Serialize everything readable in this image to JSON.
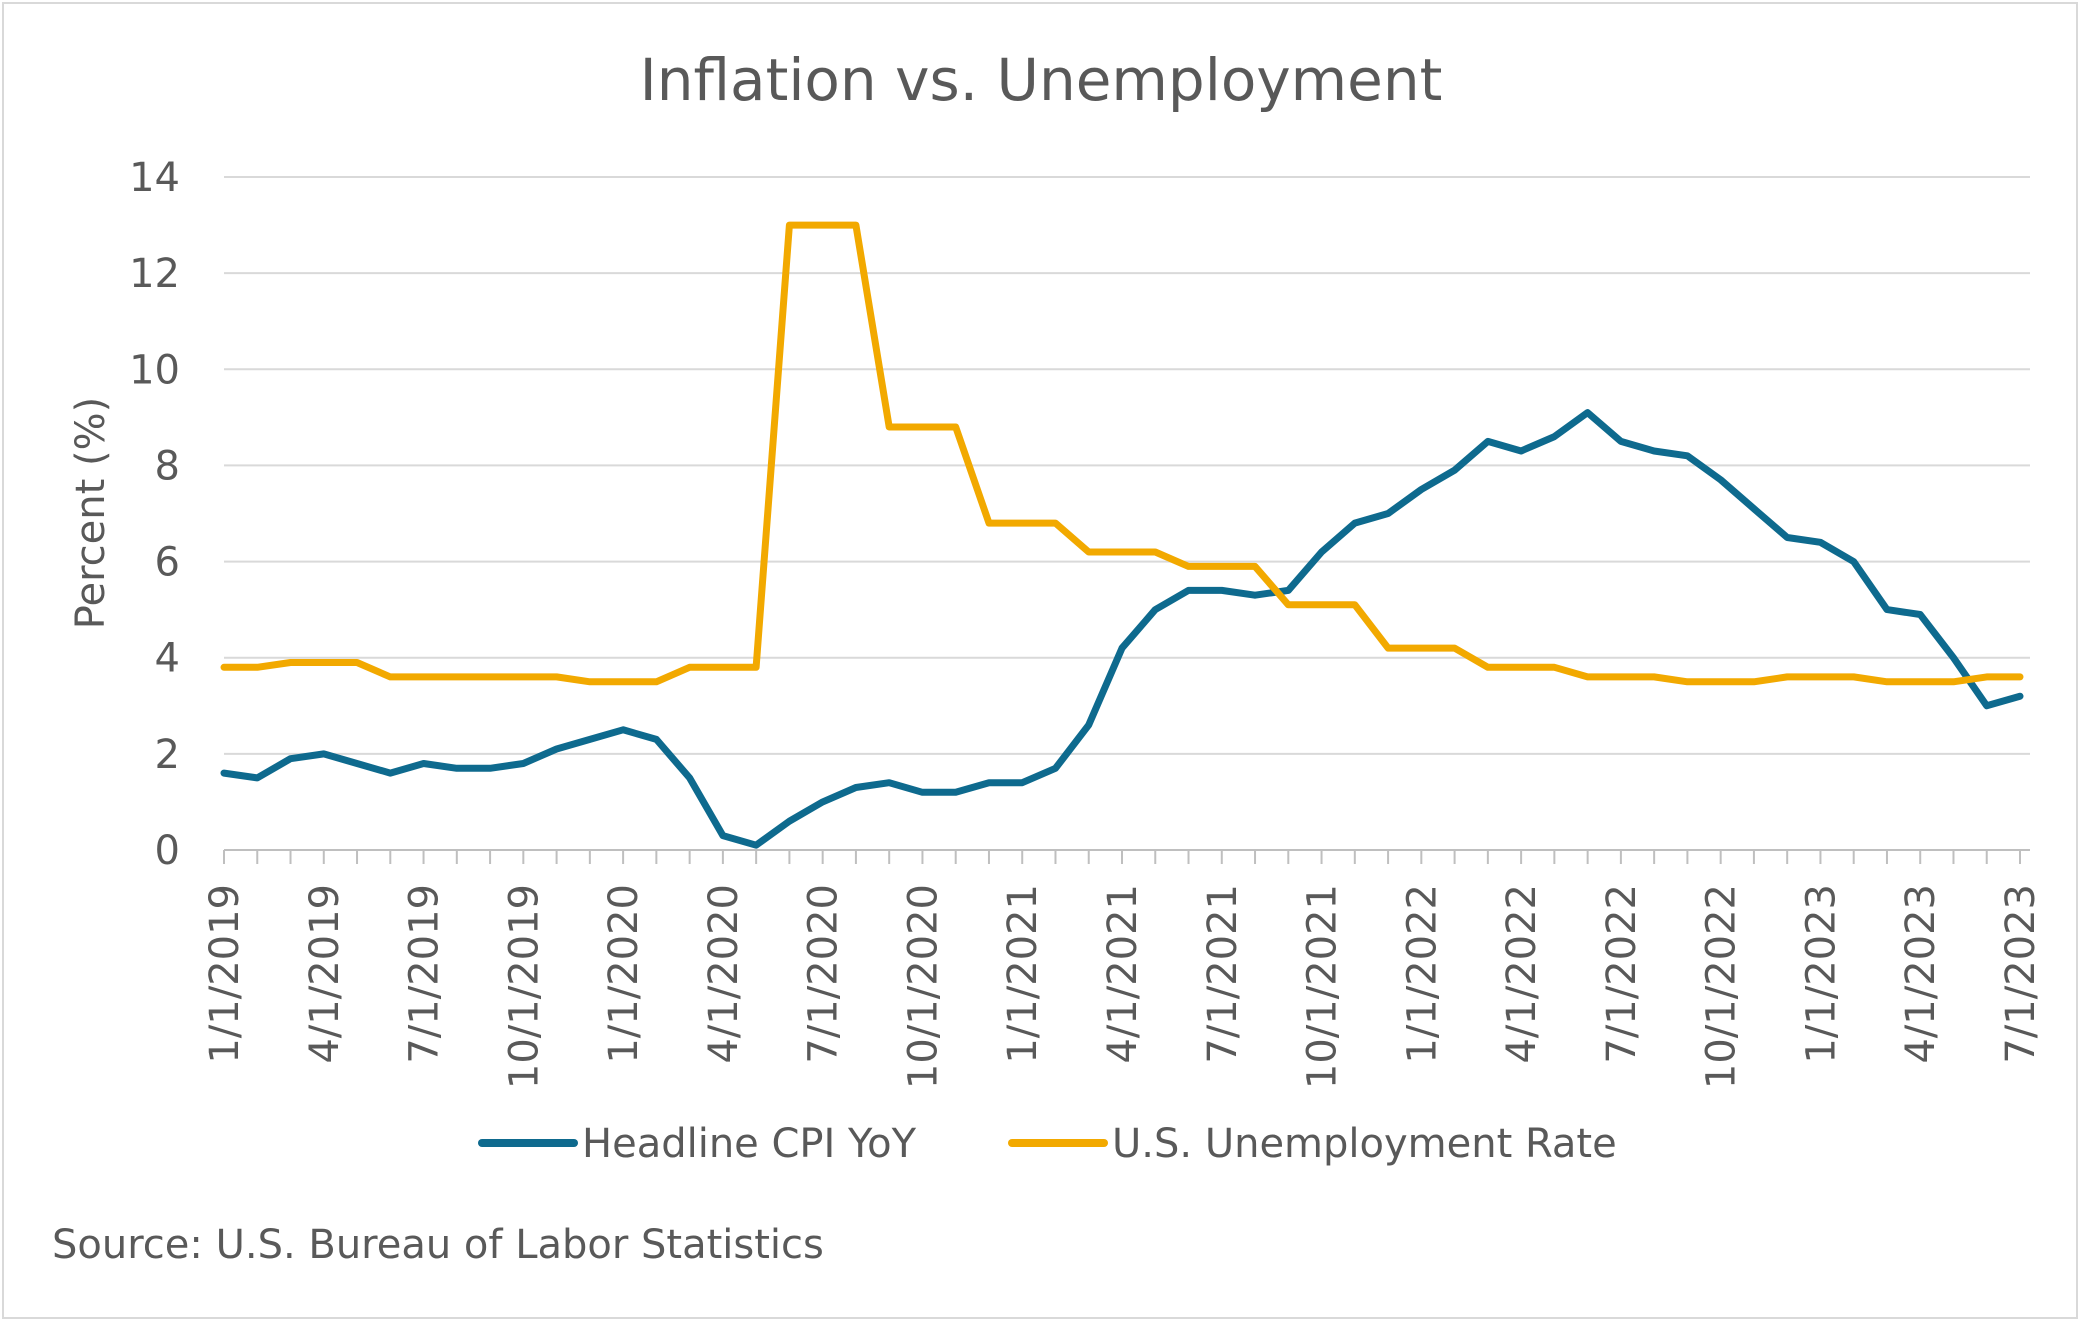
{
  "chart_data": {
    "type": "line",
    "title": "Inflation vs. Unemployment",
    "ylabel": "Percent (%)",
    "xlabel": "",
    "ylim": [
      0,
      14
    ],
    "yticks": [
      "0",
      "2",
      "4",
      "6",
      "8",
      "10",
      "12",
      "14"
    ],
    "xticks": [
      "1/1/2019",
      "4/1/2019",
      "7/1/2019",
      "10/1/2019",
      "1/1/2020",
      "4/1/2020",
      "7/1/2020",
      "10/1/2020",
      "1/1/2021",
      "4/1/2021",
      "7/1/2021",
      "10/1/2021",
      "1/1/2022",
      "4/1/2022",
      "7/1/2022",
      "10/1/2022",
      "1/1/2023",
      "4/1/2023",
      "7/1/2023"
    ],
    "grid": true,
    "legend_position": "bottom",
    "x": [
      "2019-01",
      "2019-02",
      "2019-03",
      "2019-04",
      "2019-05",
      "2019-06",
      "2019-07",
      "2019-08",
      "2019-09",
      "2019-10",
      "2019-11",
      "2019-12",
      "2020-01",
      "2020-02",
      "2020-03",
      "2020-04",
      "2020-05",
      "2020-06",
      "2020-07",
      "2020-08",
      "2020-09",
      "2020-10",
      "2020-11",
      "2020-12",
      "2021-01",
      "2021-02",
      "2021-03",
      "2021-04",
      "2021-05",
      "2021-06",
      "2021-07",
      "2021-08",
      "2021-09",
      "2021-10",
      "2021-11",
      "2021-12",
      "2022-01",
      "2022-02",
      "2022-03",
      "2022-04",
      "2022-05",
      "2022-06",
      "2022-07",
      "2022-08",
      "2022-09",
      "2022-10",
      "2022-11",
      "2022-12",
      "2023-01",
      "2023-02",
      "2023-03",
      "2023-04",
      "2023-05",
      "2023-06",
      "2023-07"
    ],
    "series": [
      {
        "name": "Headline CPI YoY",
        "color": "#0e6a8e",
        "values": [
          1.6,
          1.5,
          1.9,
          2.0,
          1.8,
          1.6,
          1.8,
          1.7,
          1.7,
          1.8,
          2.1,
          2.3,
          2.5,
          2.3,
          1.5,
          0.3,
          0.1,
          0.6,
          1.0,
          1.3,
          1.4,
          1.2,
          1.2,
          1.4,
          1.4,
          1.7,
          2.6,
          4.2,
          5.0,
          5.4,
          5.4,
          5.3,
          5.4,
          6.2,
          6.8,
          7.0,
          7.5,
          7.9,
          8.5,
          8.3,
          8.6,
          9.1,
          8.5,
          8.3,
          8.2,
          7.7,
          7.1,
          6.5,
          6.4,
          6.0,
          5.0,
          4.9,
          4.0,
          3.0,
          3.2
        ]
      },
      {
        "name": "U.S. Unemployment Rate",
        "color": "#f2a900",
        "values": [
          3.8,
          3.8,
          3.9,
          3.9,
          3.9,
          3.6,
          3.6,
          3.6,
          3.6,
          3.6,
          3.6,
          3.5,
          3.5,
          3.5,
          3.8,
          3.8,
          3.8,
          13.0,
          13.0,
          13.0,
          8.8,
          8.8,
          8.8,
          6.8,
          6.8,
          6.8,
          6.2,
          6.2,
          6.2,
          5.9,
          5.9,
          5.9,
          5.1,
          5.1,
          5.1,
          4.2,
          4.2,
          4.2,
          3.8,
          3.8,
          3.8,
          3.6,
          3.6,
          3.6,
          3.5,
          3.5,
          3.5,
          3.6,
          3.6,
          3.6,
          3.5,
          3.5,
          3.5,
          3.6,
          3.6
        ]
      }
    ]
  },
  "source_note": "Source: U.S. Bureau of Labor Statistics"
}
